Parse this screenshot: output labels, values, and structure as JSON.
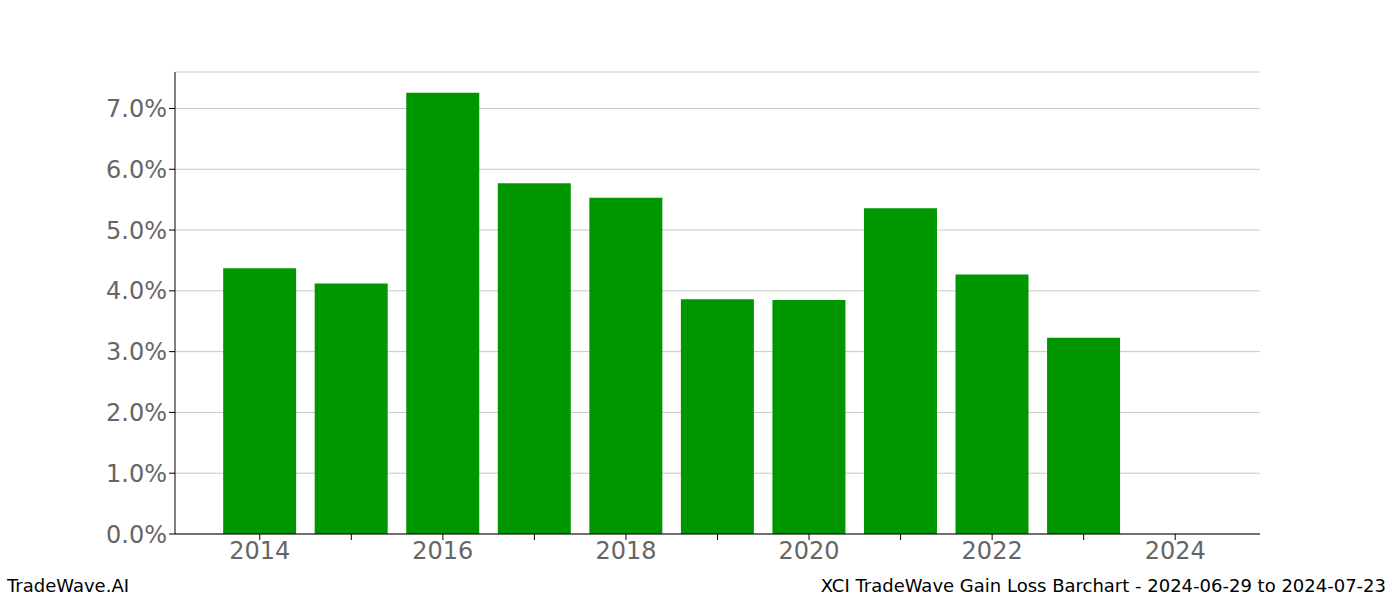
{
  "chart_data": {
    "type": "bar",
    "categories": [
      "2014",
      null,
      "2016",
      null,
      "2018",
      null,
      "2020",
      null,
      "2022",
      null,
      "2024"
    ],
    "values": [
      4.37,
      4.12,
      7.26,
      5.77,
      5.53,
      3.86,
      3.85,
      5.36,
      4.27,
      3.23,
      null
    ],
    "color": "#009600",
    "ylim": [
      0,
      7.6
    ],
    "yticks": [
      {
        "value": 0,
        "label": "0.0%"
      },
      {
        "value": 1,
        "label": "1.0%"
      },
      {
        "value": 2,
        "label": "2.0%"
      },
      {
        "value": 3,
        "label": "3.0%"
      },
      {
        "value": 4,
        "label": "4.0%"
      },
      {
        "value": 5,
        "label": "5.0%"
      },
      {
        "value": 6,
        "label": "6.0%"
      },
      {
        "value": 7,
        "label": "7.0%"
      }
    ],
    "grid": true,
    "annotations": [
      "TradeWave.AI",
      "XCI TradeWave Gain Loss Barchart - 2024-06-29 to 2024-07-23"
    ]
  }
}
